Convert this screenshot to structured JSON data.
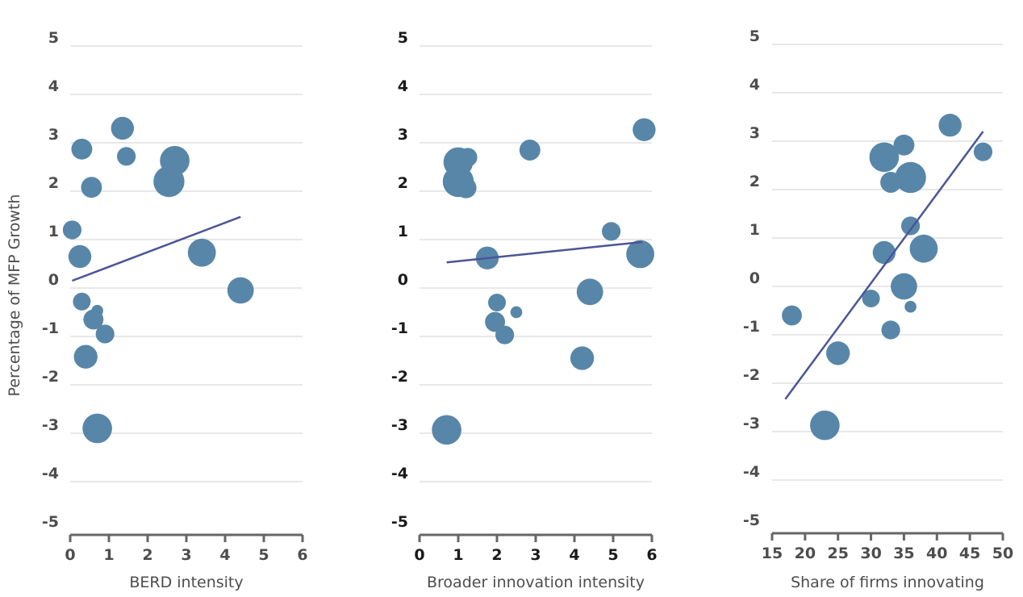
{
  "chart_data": [
    {
      "type": "scatter",
      "xlabel": "BERD intensity",
      "ylabel": "Percentage of MFP Growth",
      "xlim": [
        0,
        6
      ],
      "ylim": [
        -5,
        5
      ],
      "xticks": [
        "0",
        "1",
        "2",
        "3",
        "4",
        "5",
        "6"
      ],
      "yticks": [
        "5",
        "4",
        "3",
        "2",
        "1",
        "0",
        "-1",
        "-2",
        "-3",
        "-4",
        "-5"
      ],
      "grid": true,
      "points": [
        {
          "x": 1.35,
          "y": 3.3,
          "size": 3
        },
        {
          "x": 0.3,
          "y": 2.87,
          "size": 2.5
        },
        {
          "x": 1.45,
          "y": 2.72,
          "size": 2
        },
        {
          "x": 2.7,
          "y": 2.63,
          "size": 5
        },
        {
          "x": 2.55,
          "y": 2.2,
          "size": 5.5
        },
        {
          "x": 0.55,
          "y": 2.08,
          "size": 2.5
        },
        {
          "x": 0.05,
          "y": 1.2,
          "size": 2
        },
        {
          "x": 0.25,
          "y": 0.65,
          "size": 3
        },
        {
          "x": 3.4,
          "y": 0.73,
          "size": 4.5
        },
        {
          "x": 4.4,
          "y": -0.05,
          "size": 4
        },
        {
          "x": 0.3,
          "y": -0.28,
          "size": 1.8
        },
        {
          "x": 0.7,
          "y": -0.47,
          "size": 0.8
        },
        {
          "x": 0.6,
          "y": -0.65,
          "size": 2.3
        },
        {
          "x": 0.9,
          "y": -0.95,
          "size": 2
        },
        {
          "x": 0.4,
          "y": -1.42,
          "size": 3.2
        },
        {
          "x": 0.7,
          "y": -2.9,
          "size": 5
        }
      ],
      "trendline": [
        [
          0.05,
          0.15
        ],
        [
          4.4,
          1.47
        ]
      ]
    },
    {
      "type": "scatter",
      "xlabel": "Broader innovation intensity",
      "xlim": [
        0,
        6
      ],
      "ylim": [
        -5,
        5
      ],
      "xticks": [
        "0",
        "1",
        "2",
        "3",
        "4",
        "5",
        "6"
      ],
      "yticks": [
        "5",
        "4",
        "3",
        "2",
        "1",
        "0",
        "-1",
        "-2",
        "-3",
        "-4",
        "-5"
      ],
      "grid": true,
      "points": [
        {
          "x": 1.0,
          "y": 2.6,
          "size": 5
        },
        {
          "x": 1.25,
          "y": 2.7,
          "size": 2
        },
        {
          "x": 1.0,
          "y": 2.2,
          "size": 5.5
        },
        {
          "x": 1.2,
          "y": 2.07,
          "size": 2.5
        },
        {
          "x": 2.85,
          "y": 2.85,
          "size": 2.5
        },
        {
          "x": 5.8,
          "y": 3.27,
          "size": 3
        },
        {
          "x": 4.95,
          "y": 1.17,
          "size": 2
        },
        {
          "x": 5.7,
          "y": 0.7,
          "size": 4.5
        },
        {
          "x": 1.75,
          "y": 0.62,
          "size": 3
        },
        {
          "x": 4.4,
          "y": -0.08,
          "size": 4
        },
        {
          "x": 2.0,
          "y": -0.3,
          "size": 1.8
        },
        {
          "x": 2.5,
          "y": -0.5,
          "size": 0.8
        },
        {
          "x": 1.95,
          "y": -0.7,
          "size": 2.3
        },
        {
          "x": 2.2,
          "y": -0.97,
          "size": 2
        },
        {
          "x": 4.2,
          "y": -1.45,
          "size": 3.2
        },
        {
          "x": 0.7,
          "y": -2.93,
          "size": 5
        }
      ],
      "trendline": [
        [
          0.7,
          0.53
        ],
        [
          5.75,
          0.95
        ]
      ]
    },
    {
      "type": "scatter",
      "xlabel": "Share of firms innovating",
      "xlim": [
        15,
        50
      ],
      "ylim": [
        -5,
        5
      ],
      "xticks": [
        "15",
        "20",
        "25",
        "30",
        "35",
        "40",
        "45",
        "50"
      ],
      "yticks": [
        "5",
        "4",
        "3",
        "2",
        "1",
        "0",
        "-1",
        "-2",
        "-3",
        "-4",
        "-5"
      ],
      "grid": true,
      "points": [
        {
          "x": 42,
          "y": 3.33,
          "size": 3
        },
        {
          "x": 35,
          "y": 2.92,
          "size": 2.5
        },
        {
          "x": 47,
          "y": 2.78,
          "size": 2
        },
        {
          "x": 32,
          "y": 2.67,
          "size": 5
        },
        {
          "x": 36,
          "y": 2.25,
          "size": 5.5
        },
        {
          "x": 33,
          "y": 2.15,
          "size": 2.5
        },
        {
          "x": 36,
          "y": 1.25,
          "size": 2
        },
        {
          "x": 32,
          "y": 0.7,
          "size": 3
        },
        {
          "x": 38,
          "y": 0.78,
          "size": 4.5
        },
        {
          "x": 35,
          "y": 0.0,
          "size": 4
        },
        {
          "x": 30,
          "y": -0.25,
          "size": 1.8
        },
        {
          "x": 36,
          "y": -0.42,
          "size": 0.8
        },
        {
          "x": 18,
          "y": -0.6,
          "size": 2.3
        },
        {
          "x": 33,
          "y": -0.9,
          "size": 2
        },
        {
          "x": 25,
          "y": -1.38,
          "size": 3.2
        },
        {
          "x": 23,
          "y": -2.87,
          "size": 5
        }
      ],
      "trendline": [
        [
          17,
          -2.33
        ],
        [
          47,
          3.2
        ]
      ]
    }
  ],
  "colors": {
    "bubble": "#5886a9",
    "trendline": "#4b5597",
    "grid": "#d0d0d0",
    "axis": "#666666"
  }
}
